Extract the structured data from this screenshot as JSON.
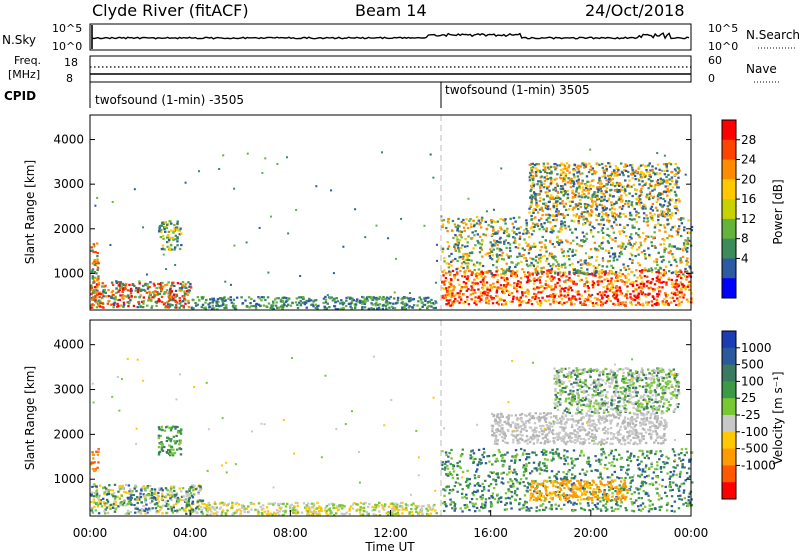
{
  "header": {
    "station": "Clyde River (fitACF)",
    "beam": "Beam 14",
    "date": "24/Oct/2018"
  },
  "noise_panel": {
    "left_label": "N.Sky",
    "left_top": "10^5",
    "left_bottom": "10^0",
    "right_top": "10^5",
    "right_bottom": "10^0",
    "right_label": "N.Search"
  },
  "freq_panel": {
    "label_line1": "Freq.",
    "label_line2": "[MHz]",
    "left_top": "18",
    "left_bottom": "8",
    "right_top": "60",
    "right_bottom": "0",
    "right_label": "Nave"
  },
  "cpid": {
    "label": "CPID",
    "segments": [
      {
        "text": "twofsound (1-min) -3505",
        "start_hour": 0
      },
      {
        "text": "twofsound (1-min) 3505",
        "start_hour": 14
      }
    ]
  },
  "chart_data": [
    {
      "type": "heatmap",
      "quantity": "Power",
      "xlabel": "",
      "ylabel": "Slant Range [km]",
      "xlim": [
        0,
        24
      ],
      "ylim": [
        180,
        4550
      ],
      "yticks": [
        1000,
        2000,
        3000,
        4000
      ],
      "colorbar": {
        "label": "Power [dB]",
        "ticks": [
          "28",
          "24",
          "20",
          "16",
          "12",
          "8",
          "4"
        ],
        "colors": [
          "#ff0000",
          "#ff4400",
          "#ff8c00",
          "#ffc800",
          "#c8d200",
          "#64b43c",
          "#3c8c5a",
          "#2d5aa0",
          "#0000ff"
        ]
      }
    },
    {
      "type": "heatmap",
      "quantity": "Velocity",
      "xlabel": "Time UT",
      "ylabel": "Slant Range [km]",
      "xlim": [
        0,
        24
      ],
      "ylim": [
        180,
        4550
      ],
      "yticks": [
        1000,
        2000,
        3000,
        4000
      ],
      "xticks": [
        "00:00",
        "04:00",
        "08:00",
        "12:00",
        "16:00",
        "20:00",
        "00:00"
      ],
      "colorbar": {
        "label": "Velocity [m s⁻¹]",
        "ticks": [
          "1000",
          "500",
          "100",
          "25",
          "-25",
          "-100",
          "-500",
          "-1000"
        ],
        "colors": [
          "#1c3cb4",
          "#2a5a9c",
          "#3a7a60",
          "#3c9a46",
          "#78c832",
          "#c8c8c8",
          "#ffc800",
          "#ff9a00",
          "#ff5a00",
          "#ff0000"
        ]
      }
    }
  ],
  "scatter_regions": [
    {
      "panel": 0,
      "t0": 0.0,
      "t1": 0.3,
      "r0": 300,
      "r1": 1700,
      "colors": [
        "#ff4400",
        "#ff8c00",
        "#3c8c5a"
      ]
    },
    {
      "panel": 0,
      "t0": 0.0,
      "t1": 4.0,
      "r0": 250,
      "r1": 850,
      "colors": [
        "#ff0000",
        "#ff4400",
        "#ff8c00",
        "#3c8c5a",
        "#2d5aa0",
        "#64b43c"
      ]
    },
    {
      "panel": 0,
      "t0": 2.7,
      "t1": 3.6,
      "r0": 1550,
      "r1": 2200,
      "colors": [
        "#3c8c5a",
        "#64b43c",
        "#ffc800",
        "#2d5aa0"
      ]
    },
    {
      "panel": 0,
      "t0": 4.0,
      "t1": 13.8,
      "r0": 220,
      "r1": 500,
      "colors": [
        "#3c8c5a",
        "#2d5aa0",
        "#64b43c"
      ]
    },
    {
      "panel": 0,
      "t0": 14.0,
      "t1": 24.0,
      "r0": 300,
      "r1": 1100,
      "colors": [
        "#ff0000",
        "#ff4400",
        "#ff8c00",
        "#ff0000",
        "#ffc800"
      ]
    },
    {
      "panel": 0,
      "t0": 14.0,
      "t1": 24.0,
      "r0": 1000,
      "r1": 2300,
      "colors": [
        "#64b43c",
        "#3c8c5a",
        "#ffc800",
        "#ff8c00",
        "#2d5aa0"
      ]
    },
    {
      "panel": 0,
      "t0": 17.5,
      "t1": 23.5,
      "r0": 2300,
      "r1": 3500,
      "colors": [
        "#3c8c5a",
        "#2d5aa0",
        "#ffc800",
        "#ff8c00"
      ]
    },
    {
      "panel": 1,
      "t0": 0.0,
      "t1": 0.3,
      "r0": 1200,
      "r1": 1700,
      "colors": [
        "#ff9a00",
        "#ff5a00"
      ]
    },
    {
      "panel": 1,
      "t0": 0.0,
      "t1": 4.5,
      "r0": 250,
      "r1": 900,
      "colors": [
        "#c8c8c8",
        "#3a7a60",
        "#ffc800",
        "#78c832",
        "#2a5a9c"
      ]
    },
    {
      "panel": 1,
      "t0": 2.7,
      "t1": 3.6,
      "r0": 1550,
      "r1": 2200,
      "colors": [
        "#3a7a60",
        "#78c832",
        "#3c9a46"
      ]
    },
    {
      "panel": 1,
      "t0": 4.5,
      "t1": 13.8,
      "r0": 220,
      "r1": 500,
      "colors": [
        "#c8c8c8",
        "#ffc800",
        "#78c832"
      ]
    },
    {
      "panel": 1,
      "t0": 14.0,
      "t1": 24.0,
      "r0": 300,
      "r1": 1700,
      "colors": [
        "#3a7a60",
        "#3c9a46",
        "#2a5a9c",
        "#78c832"
      ]
    },
    {
      "panel": 1,
      "t0": 17.5,
      "t1": 21.5,
      "r0": 550,
      "r1": 1000,
      "colors": [
        "#ff9a00",
        "#ffc800",
        "#ff9a00"
      ]
    },
    {
      "panel": 1,
      "t0": 16.0,
      "t1": 23.0,
      "r0": 1800,
      "r1": 2500,
      "colors": [
        "#c8c8c8",
        "#b4b4b4"
      ]
    },
    {
      "panel": 1,
      "t0": 18.5,
      "t1": 23.5,
      "r0": 2500,
      "r1": 3500,
      "colors": [
        "#c8c8c8",
        "#78c832",
        "#3a7a60"
      ]
    }
  ]
}
